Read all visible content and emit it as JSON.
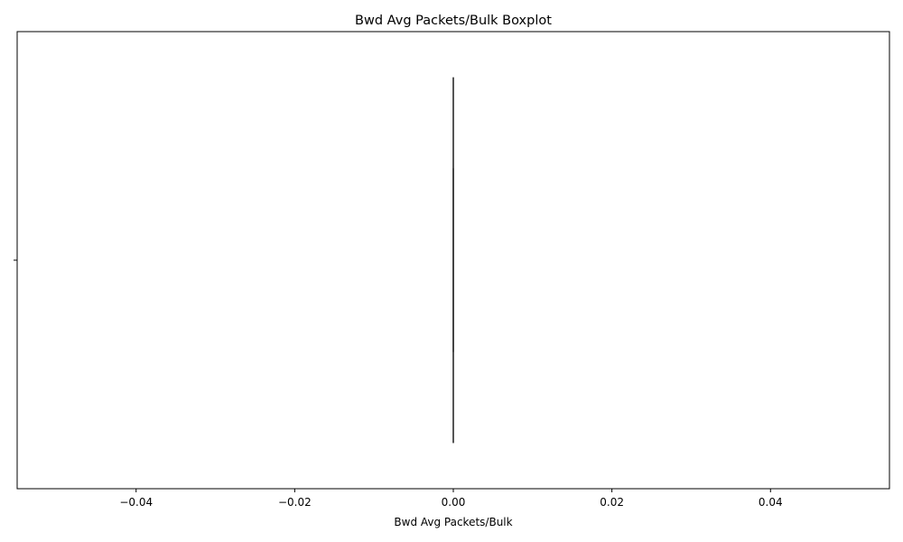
{
  "chart_data": {
    "type": "boxplot",
    "title": "Bwd Avg Packets/Bulk Boxplot",
    "xlabel": "Bwd Avg Packets/Bulk",
    "ylabel": "",
    "xlim": [
      -0.055,
      0.055
    ],
    "x_ticks": [
      -0.04,
      -0.02,
      0.0,
      0.02,
      0.04
    ],
    "x_tick_labels": [
      "−0.04",
      "−0.02",
      "0.00",
      "0.02",
      "0.04"
    ],
    "orientation": "horizontal",
    "grid": false,
    "legend": "none",
    "box": {
      "min": 0,
      "q1": 0,
      "median": 0,
      "q3": 0,
      "max": 0
    },
    "colors": {
      "box_line": "#3f3f3f",
      "axis": "#000000"
    }
  }
}
